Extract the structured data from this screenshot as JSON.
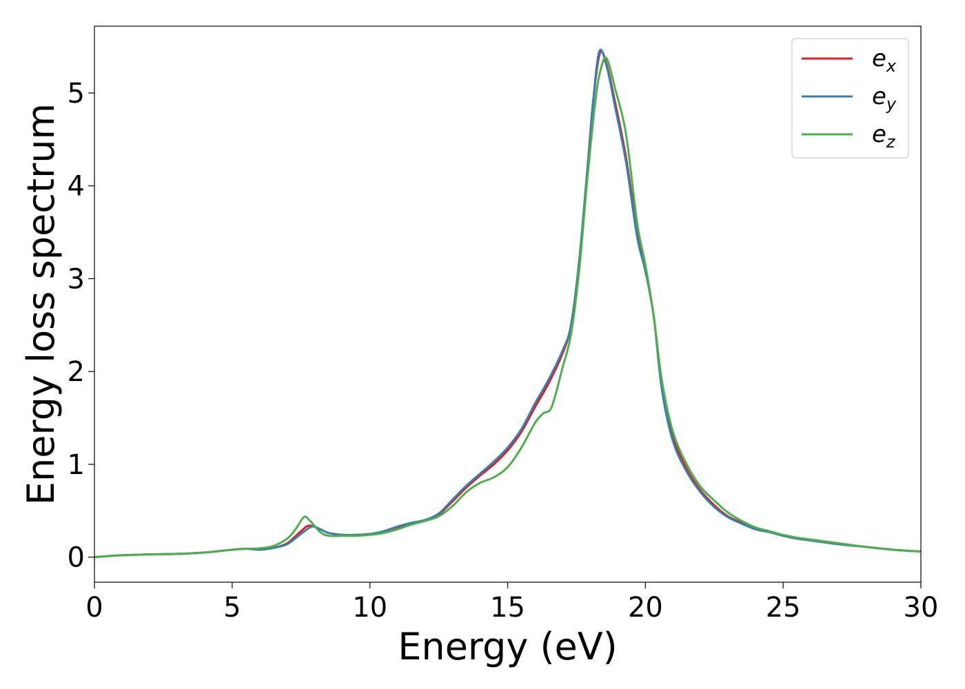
{
  "chart_data": {
    "type": "line",
    "xlabel": "Energy (eV)",
    "ylabel": "Energy loss spectrum",
    "xlim": [
      0,
      30
    ],
    "ylim": [
      -0.27,
      5.72
    ],
    "xticks": [
      0,
      5,
      10,
      15,
      20,
      25,
      30
    ],
    "yticks": [
      0,
      1,
      2,
      3,
      4,
      5
    ],
    "grid": false,
    "legend": "top-right",
    "series": [
      {
        "name": "e_x",
        "label_main": "e",
        "label_sub": "x",
        "color": "#e41a1c",
        "points": [
          [
            0,
            0
          ],
          [
            1,
            0.02
          ],
          [
            2,
            0.03
          ],
          [
            3,
            0.035
          ],
          [
            4,
            0.05
          ],
          [
            5,
            0.08
          ],
          [
            5.5,
            0.09
          ],
          [
            6,
            0.08
          ],
          [
            6.5,
            0.1
          ],
          [
            7,
            0.15
          ],
          [
            7.5,
            0.28
          ],
          [
            7.8,
            0.34
          ],
          [
            8.2,
            0.3
          ],
          [
            8.5,
            0.26
          ],
          [
            9,
            0.24
          ],
          [
            9.5,
            0.24
          ],
          [
            10,
            0.25
          ],
          [
            10.5,
            0.27
          ],
          [
            11,
            0.31
          ],
          [
            11.5,
            0.36
          ],
          [
            12,
            0.39
          ],
          [
            12.5,
            0.46
          ],
          [
            13,
            0.6
          ],
          [
            13.5,
            0.75
          ],
          [
            14,
            0.88
          ],
          [
            14.5,
            1.0
          ],
          [
            15,
            1.15
          ],
          [
            15.5,
            1.35
          ],
          [
            16,
            1.62
          ],
          [
            16.5,
            1.88
          ],
          [
            17,
            2.2
          ],
          [
            17.3,
            2.5
          ],
          [
            17.6,
            3.2
          ],
          [
            17.9,
            4.2
          ],
          [
            18.1,
            4.9
          ],
          [
            18.35,
            5.43
          ],
          [
            18.6,
            5.3
          ],
          [
            18.9,
            4.9
          ],
          [
            19.3,
            4.3
          ],
          [
            19.7,
            3.5
          ],
          [
            20,
            3.1
          ],
          [
            20.3,
            2.6
          ],
          [
            20.6,
            1.85
          ],
          [
            21,
            1.3
          ],
          [
            21.5,
            0.95
          ],
          [
            22,
            0.72
          ],
          [
            22.5,
            0.56
          ],
          [
            23,
            0.44
          ],
          [
            23.5,
            0.37
          ],
          [
            24,
            0.3
          ],
          [
            24.5,
            0.27
          ],
          [
            25,
            0.23
          ],
          [
            25.5,
            0.2
          ],
          [
            26,
            0.18
          ],
          [
            27,
            0.14
          ],
          [
            28,
            0.11
          ],
          [
            29,
            0.08
          ],
          [
            30,
            0.06
          ]
        ]
      },
      {
        "name": "e_y",
        "label_main": "e",
        "label_sub": "y",
        "color": "#377eb8",
        "points": [
          [
            0,
            0
          ],
          [
            1,
            0.02
          ],
          [
            2,
            0.03
          ],
          [
            3,
            0.035
          ],
          [
            4,
            0.05
          ],
          [
            5,
            0.08
          ],
          [
            5.5,
            0.09
          ],
          [
            6,
            0.08
          ],
          [
            6.5,
            0.1
          ],
          [
            7,
            0.14
          ],
          [
            7.5,
            0.25
          ],
          [
            7.9,
            0.33
          ],
          [
            8.2,
            0.3
          ],
          [
            8.5,
            0.26
          ],
          [
            9,
            0.24
          ],
          [
            9.5,
            0.24
          ],
          [
            10,
            0.25
          ],
          [
            10.5,
            0.28
          ],
          [
            11,
            0.33
          ],
          [
            11.5,
            0.37
          ],
          [
            12,
            0.4
          ],
          [
            12.5,
            0.47
          ],
          [
            13,
            0.62
          ],
          [
            13.5,
            0.77
          ],
          [
            14,
            0.9
          ],
          [
            14.5,
            1.03
          ],
          [
            15,
            1.18
          ],
          [
            15.5,
            1.38
          ],
          [
            16,
            1.66
          ],
          [
            16.5,
            1.92
          ],
          [
            17,
            2.23
          ],
          [
            17.3,
            2.5
          ],
          [
            17.6,
            3.2
          ],
          [
            17.9,
            4.2
          ],
          [
            18.1,
            4.9
          ],
          [
            18.33,
            5.45
          ],
          [
            18.6,
            5.28
          ],
          [
            18.9,
            4.85
          ],
          [
            19.3,
            4.25
          ],
          [
            19.7,
            3.45
          ],
          [
            20,
            3.08
          ],
          [
            20.3,
            2.6
          ],
          [
            20.6,
            1.8
          ],
          [
            21,
            1.25
          ],
          [
            21.5,
            0.92
          ],
          [
            22,
            0.7
          ],
          [
            22.5,
            0.54
          ],
          [
            23,
            0.43
          ],
          [
            23.5,
            0.36
          ],
          [
            24,
            0.3
          ],
          [
            24.5,
            0.27
          ],
          [
            25,
            0.23
          ],
          [
            25.5,
            0.2
          ],
          [
            26,
            0.18
          ],
          [
            27,
            0.14
          ],
          [
            28,
            0.11
          ],
          [
            29,
            0.08
          ],
          [
            30,
            0.06
          ]
        ]
      },
      {
        "name": "e_z",
        "label_main": "e",
        "label_sub": "z",
        "color": "#4daf4a",
        "points": [
          [
            0,
            0
          ],
          [
            1,
            0.02
          ],
          [
            2,
            0.03
          ],
          [
            3,
            0.035
          ],
          [
            4,
            0.05
          ],
          [
            5,
            0.08
          ],
          [
            5.5,
            0.09
          ],
          [
            6,
            0.095
          ],
          [
            6.5,
            0.12
          ],
          [
            7,
            0.2
          ],
          [
            7.3,
            0.3
          ],
          [
            7.6,
            0.43
          ],
          [
            7.8,
            0.4
          ],
          [
            8.2,
            0.27
          ],
          [
            8.5,
            0.23
          ],
          [
            9,
            0.23
          ],
          [
            9.5,
            0.23
          ],
          [
            10,
            0.24
          ],
          [
            10.5,
            0.26
          ],
          [
            11,
            0.3
          ],
          [
            11.5,
            0.35
          ],
          [
            12,
            0.39
          ],
          [
            12.5,
            0.44
          ],
          [
            13,
            0.55
          ],
          [
            13.5,
            0.7
          ],
          [
            14,
            0.8
          ],
          [
            14.5,
            0.86
          ],
          [
            15,
            0.97
          ],
          [
            15.5,
            1.18
          ],
          [
            16,
            1.45
          ],
          [
            16.3,
            1.55
          ],
          [
            16.6,
            1.62
          ],
          [
            17,
            2.05
          ],
          [
            17.3,
            2.4
          ],
          [
            17.6,
            3.1
          ],
          [
            17.9,
            4.1
          ],
          [
            18.2,
            4.95
          ],
          [
            18.4,
            5.28
          ],
          [
            18.6,
            5.37
          ],
          [
            18.9,
            5.05
          ],
          [
            19.3,
            4.55
          ],
          [
            19.7,
            3.6
          ],
          [
            20,
            3.15
          ],
          [
            20.3,
            2.6
          ],
          [
            20.6,
            1.9
          ],
          [
            21,
            1.35
          ],
          [
            21.5,
            1.0
          ],
          [
            22,
            0.76
          ],
          [
            22.5,
            0.61
          ],
          [
            23,
            0.48
          ],
          [
            23.5,
            0.39
          ],
          [
            24,
            0.32
          ],
          [
            24.5,
            0.28
          ],
          [
            25,
            0.24
          ],
          [
            25.5,
            0.21
          ],
          [
            26,
            0.19
          ],
          [
            27,
            0.15
          ],
          [
            28,
            0.11
          ],
          [
            29,
            0.08
          ],
          [
            30,
            0.06
          ]
        ]
      }
    ]
  }
}
